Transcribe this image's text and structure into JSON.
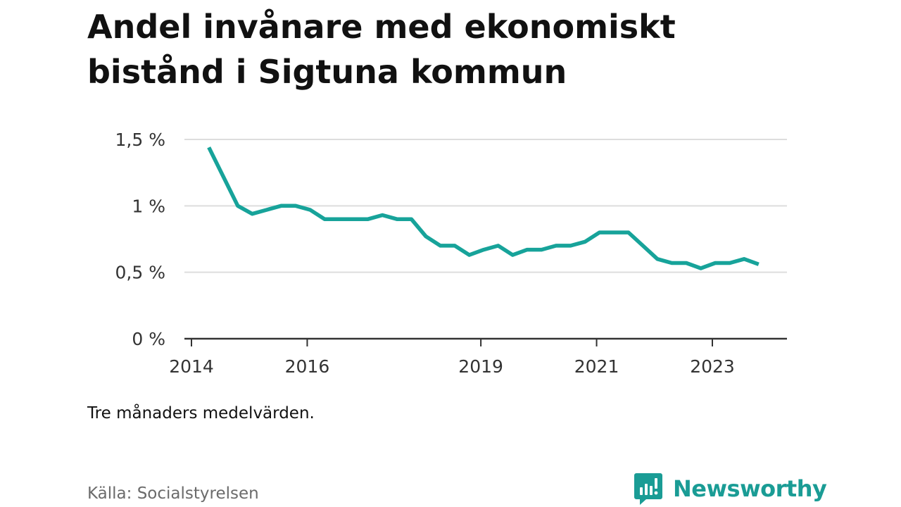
{
  "title": "Andel invånare med ekonomiskt bistånd i Sigtuna kommun",
  "note": "Tre månaders medelvärden.",
  "source": "Källa: Socialstyrelsen",
  "brand": {
    "name": "Newsworthy",
    "icon": "newsworthy-logo-icon",
    "color": "#1a9c95"
  },
  "colors": {
    "line": "#17a39a",
    "grid": "#dddddd",
    "axis": "#333333"
  },
  "chart_data": {
    "type": "line",
    "title": "Andel invånare med ekonomiskt bistånd i Sigtuna kommun",
    "xlabel": "",
    "ylabel": "",
    "x_ticks": [
      "2014",
      "2016",
      "2019",
      "2021",
      "2023"
    ],
    "y_ticks": [
      "0 %",
      "0,5 %",
      "1 %",
      "1,5 %"
    ],
    "ylim": [
      0,
      1.5
    ],
    "xlim": [
      2014.0,
      2024.3
    ],
    "grid": true,
    "series": [
      {
        "x": [
          2014.3,
          2014.8,
          2015.05,
          2015.3,
          2015.55,
          2015.8,
          2016.05,
          2016.3,
          2016.55,
          2016.8,
          2017.05,
          2017.3,
          2017.55,
          2017.8,
          2018.05,
          2018.3,
          2018.55,
          2018.8,
          2019.05,
          2019.3,
          2019.55,
          2019.8,
          2020.05,
          2020.3,
          2020.55,
          2020.8,
          2021.05,
          2021.3,
          2021.55,
          2021.8,
          2022.05,
          2022.3,
          2022.55,
          2022.8,
          2023.05,
          2023.3,
          2023.55,
          2023.8
        ],
        "values": [
          1.44,
          1.0,
          0.94,
          0.97,
          1.0,
          1.0,
          0.97,
          0.9,
          0.9,
          0.9,
          0.9,
          0.93,
          0.9,
          0.9,
          0.77,
          0.7,
          0.7,
          0.63,
          0.67,
          0.7,
          0.63,
          0.67,
          0.67,
          0.7,
          0.7,
          0.73,
          0.8,
          0.8,
          0.8,
          0.7,
          0.6,
          0.57,
          0.57,
          0.53,
          0.57,
          0.57,
          0.6,
          0.56
        ]
      }
    ]
  }
}
